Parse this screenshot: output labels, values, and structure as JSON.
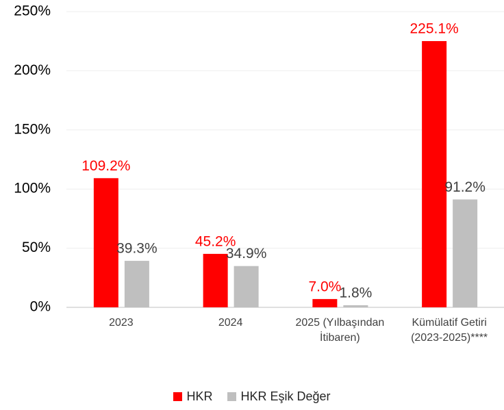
{
  "chart_data": {
    "type": "bar",
    "categories": [
      "2023",
      "2024",
      "2025 (Yılbaşından İtibaren)",
      "Kümülatif Getiri (2023-2025)****"
    ],
    "series": [
      {
        "name": "HKR",
        "color": "#ff0000",
        "values": [
          109.2,
          45.2,
          7.0,
          225.1
        ],
        "value_labels": [
          "109.2%",
          "45.2%",
          "7.0%",
          "225.1%"
        ]
      },
      {
        "name": "HKR Eşik Değer",
        "color": "#bfbfbf",
        "values": [
          39.3,
          34.9,
          1.8,
          91.2
        ],
        "value_labels": [
          "39.3%",
          "34.9%",
          "1.8%",
          "91.2%"
        ]
      }
    ],
    "ylim": [
      0,
      250
    ],
    "yticks": [
      {
        "value": 0,
        "label": "0%"
      },
      {
        "value": 50,
        "label": "50%"
      },
      {
        "value": 100,
        "label": "100%"
      },
      {
        "value": 150,
        "label": "150%"
      },
      {
        "value": 200,
        "label": "200%"
      },
      {
        "value": 250,
        "label": "250%"
      }
    ],
    "grid": true,
    "legend": "bottom"
  }
}
